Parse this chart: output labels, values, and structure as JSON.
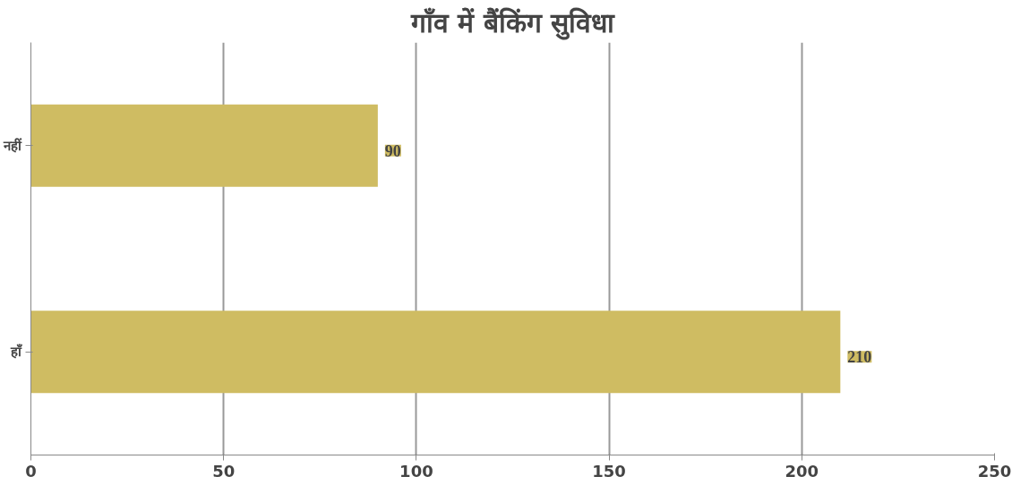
{
  "chart_data": {
    "type": "bar",
    "orientation": "horizontal",
    "title": "गाँव में बैंकिंग सुविधा",
    "categories": [
      "नहीं",
      "हाँ"
    ],
    "values": [
      90,
      210
    ],
    "color": "#cfbc62",
    "xlim": [
      0,
      250
    ],
    "xticks": [
      0,
      50,
      100,
      150,
      200,
      250
    ],
    "grid": "x",
    "data_labels": true
  }
}
